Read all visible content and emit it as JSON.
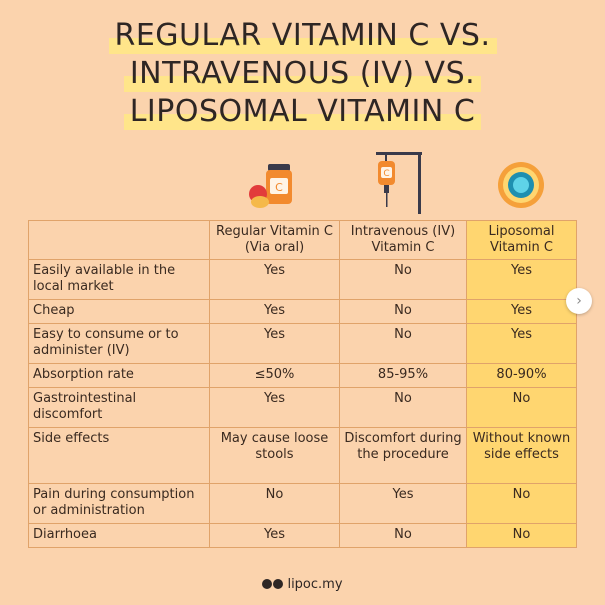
{
  "title": {
    "line1": "REGULAR VITAMIN C VS.",
    "line2": "INTRAVENOUS (IV) VS.",
    "line3": "LIPOSOMAL VITAMIN C"
  },
  "icons": [
    "pill-bottle-icon",
    "iv-drip-icon",
    "liposome-icon"
  ],
  "colors": {
    "background": "#fbd3ad",
    "highlight": "#ffd670",
    "title_highlight": "#ffe58a",
    "border": "#e0a36a"
  },
  "table": {
    "headers": [
      "Regular Vitamin C (Via oral)",
      "Intravenous (IV) Vitamin C",
      "Liposomal Vitamin C"
    ],
    "rows": [
      {
        "label": "Easily available in the local market",
        "regular": "Yes",
        "iv": "No",
        "liposomal": "Yes"
      },
      {
        "label": "Cheap",
        "regular": "Yes",
        "iv": "No",
        "liposomal": "Yes"
      },
      {
        "label": "Easy to consume or to administer (IV)",
        "regular": "Yes",
        "iv": "No",
        "liposomal": "Yes"
      },
      {
        "label": "Absorption rate",
        "regular": "≤50%",
        "iv": "85-95%",
        "liposomal": "80-90%"
      },
      {
        "label": "Gastrointestinal discomfort",
        "regular": "Yes",
        "iv": "No",
        "liposomal": "No"
      },
      {
        "label": "Side effects",
        "regular": "May cause loose stools",
        "iv": "Discomfort during the procedure",
        "liposomal": "Without known side effects"
      },
      {
        "label": "Pain during consumption or administration",
        "regular": "No",
        "iv": "Yes",
        "liposomal": "No"
      },
      {
        "label": "Diarrhoea",
        "regular": "Yes",
        "iv": "No",
        "liposomal": "No"
      }
    ]
  },
  "footer": {
    "handle": "lipoc.my",
    "social_icons": [
      "facebook-icon",
      "instagram-icon"
    ]
  },
  "carousel": {
    "next_icon": "chevron-right-icon"
  }
}
